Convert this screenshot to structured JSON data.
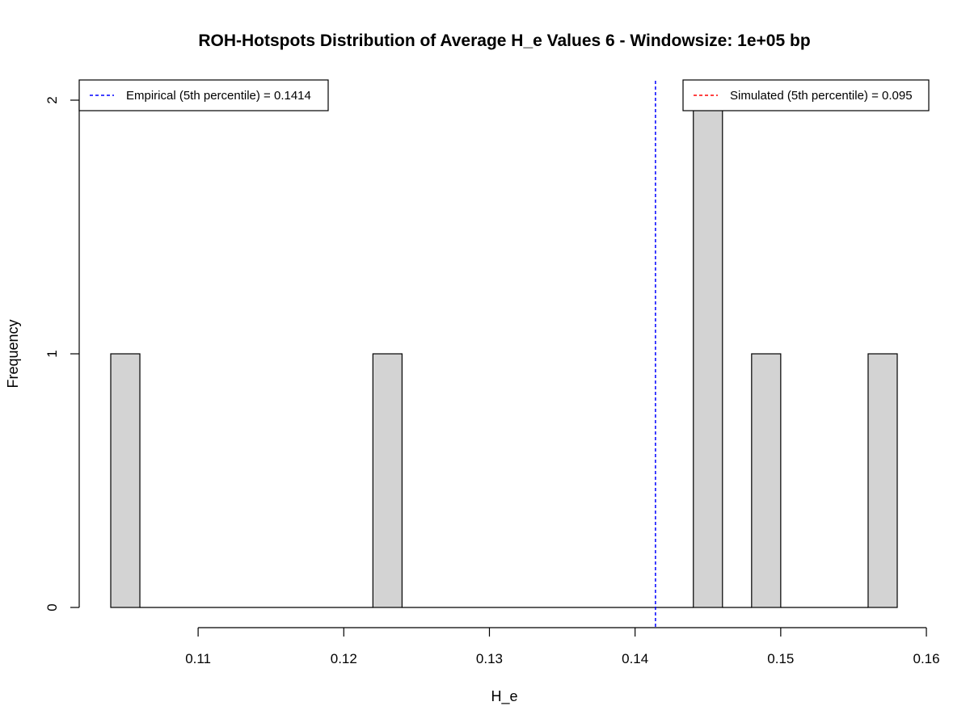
{
  "chart_data": {
    "type": "bar",
    "title": "ROH-Hotspots Distribution of Average H_e Values 6 - Windowsize: 1e+05 bp",
    "xlabel": "H_e",
    "ylabel": "Frequency",
    "xlim": [
      0.104,
      0.158
    ],
    "ylim": [
      0,
      2
    ],
    "x_ticks": [
      "0.11",
      "0.12",
      "0.13",
      "0.14",
      "0.15",
      "0.16"
    ],
    "y_ticks": [
      "0",
      "1",
      "2"
    ],
    "bins": [
      {
        "start": 0.104,
        "end": 0.106,
        "count": 1
      },
      {
        "start": 0.122,
        "end": 0.124,
        "count": 1
      },
      {
        "start": 0.144,
        "end": 0.146,
        "count": 2
      },
      {
        "start": 0.148,
        "end": 0.15,
        "count": 1
      },
      {
        "start": 0.156,
        "end": 0.158,
        "count": 1
      }
    ],
    "vlines": [
      {
        "label": "Empirical (5th percentile) = 0.1414",
        "x": 0.1414,
        "color": "#0000ff",
        "legend_position": "top-left"
      },
      {
        "label": "Simulated (5th percentile) = 0.095",
        "x": 0.095,
        "color": "#ff0000",
        "legend_position": "top-right"
      }
    ],
    "bar_color": "#d3d3d3",
    "grid": false
  }
}
